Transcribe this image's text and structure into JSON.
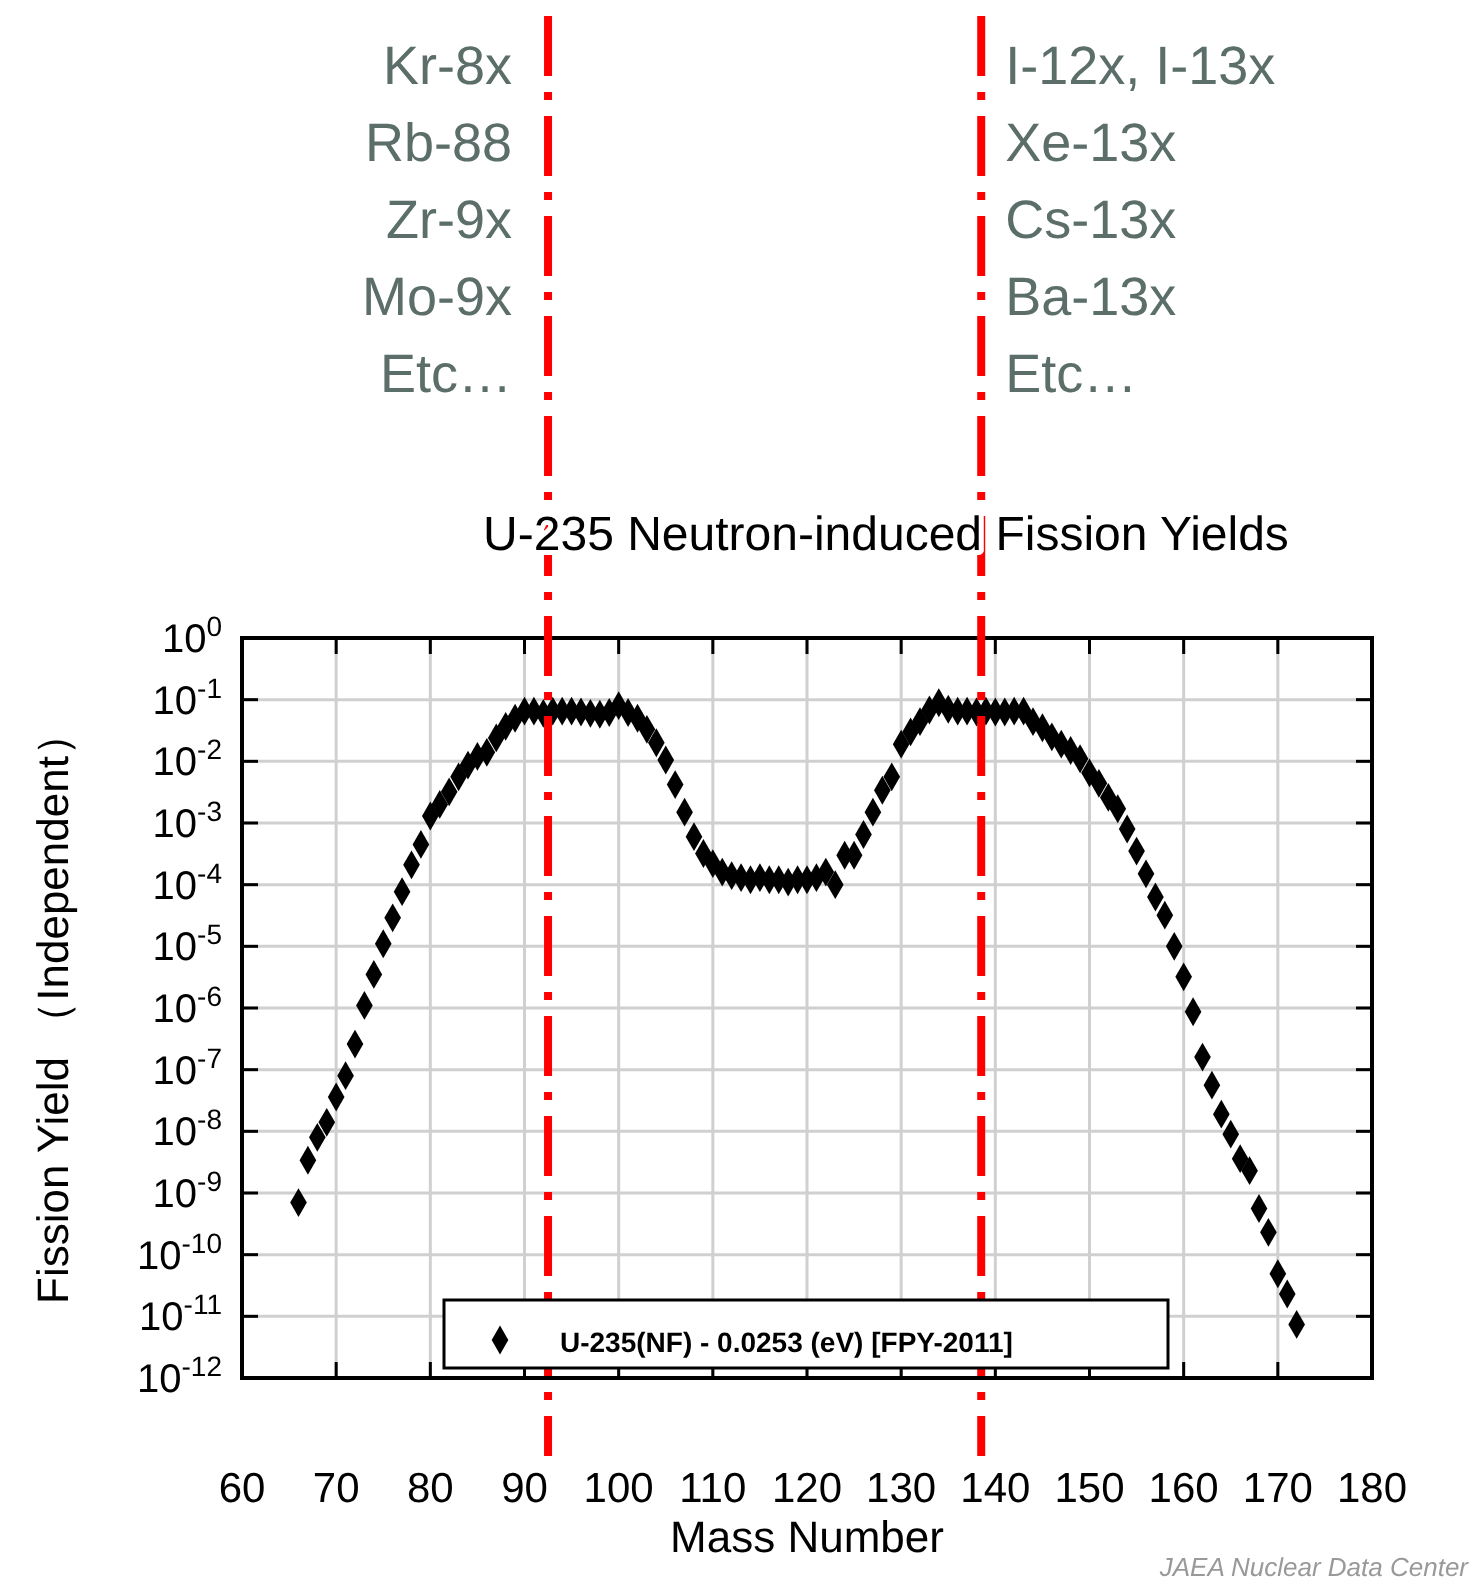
{
  "chart_data": {
    "type": "scatter",
    "title": "U-235  Neutron-induced Fission Yields",
    "xlabel": "Mass Number",
    "ylabel": "Fission Yield （Independent）",
    "log": "y",
    "grid": true,
    "legend": "bottom",
    "marker": "diamond",
    "xlim": [
      60,
      180
    ],
    "xticks": [
      60,
      70,
      80,
      90,
      100,
      110,
      120,
      130,
      140,
      150,
      160,
      170,
      180
    ],
    "ylim": [
      1e-12,
      1
    ],
    "yticks": [
      {
        "value": 1e-12,
        "label": "10$^{-12}$"
      },
      {
        "value": 1e-11,
        "label": "10$^{-11}$"
      },
      {
        "value": 1e-10,
        "label": "10$^{-10}$"
      },
      {
        "value": 1e-09,
        "label": "10$^{-9}$"
      },
      {
        "value": 1e-08,
        "label": "10$^{-8}$"
      },
      {
        "value": 1e-07,
        "label": "10$^{-7}$"
      },
      {
        "value": 1e-06,
        "label": "10$^{-6}$"
      },
      {
        "value": 1e-05,
        "label": "10$^{-5}$"
      },
      {
        "value": 0.0001,
        "label": "10$^{-4}$"
      },
      {
        "value": 0.001,
        "label": "10$^{-3}$"
      },
      {
        "value": 0.01,
        "label": "10$^{-2}$"
      },
      {
        "value": 0.1,
        "label": "10$^{-1}$"
      },
      {
        "value": 1,
        "label": "10$^{0}$"
      }
    ],
    "series": [
      {
        "name": "U-235(NF) - 0.0253 (eV)  [FPY-2011]",
        "color": "#000000",
        "x": [
          66,
          67,
          68,
          69,
          70,
          71,
          72,
          73,
          74,
          75,
          76,
          77,
          78,
          79,
          80,
          81,
          82,
          83,
          84,
          85,
          86,
          87,
          88,
          89,
          90,
          91,
          92,
          93,
          94,
          95,
          96,
          97,
          98,
          99,
          100,
          101,
          102,
          103,
          104,
          105,
          106,
          107,
          108,
          109,
          110,
          111,
          112,
          113,
          114,
          115,
          116,
          117,
          118,
          119,
          120,
          121,
          122,
          123,
          124,
          125,
          126,
          127,
          128,
          129,
          130,
          131,
          132,
          133,
          134,
          135,
          136,
          137,
          138,
          139,
          140,
          141,
          142,
          143,
          144,
          145,
          146,
          147,
          148,
          149,
          150,
          151,
          152,
          153,
          154,
          155,
          156,
          157,
          158,
          159,
          160,
          161,
          162,
          163,
          164,
          165,
          166,
          167,
          168,
          169,
          170,
          171,
          172
        ],
        "values": [
          7e-10,
          3.4e-09,
          8e-09,
          1.4e-08,
          3.6e-08,
          8e-08,
          2.6e-07,
          1.1e-06,
          3.5e-06,
          1.1e-05,
          2.9e-05,
          7.7e-05,
          0.00021,
          0.00045,
          0.0013,
          0.002,
          0.0032,
          0.0056,
          0.0087,
          0.012,
          0.014,
          0.024,
          0.037,
          0.05,
          0.065,
          0.065,
          0.06,
          0.065,
          0.065,
          0.065,
          0.063,
          0.06,
          0.058,
          0.062,
          0.08,
          0.062,
          0.05,
          0.033,
          0.02,
          0.0105,
          0.0042,
          0.0015,
          0.0006,
          0.00032,
          0.00022,
          0.00016,
          0.00014,
          0.00013,
          0.00012,
          0.00013,
          0.00012,
          0.00012,
          0.00011,
          0.00012,
          0.00012,
          0.00013,
          0.00016,
          0.0001,
          0.0003,
          0.0003,
          0.00065,
          0.0015,
          0.0034,
          0.0056,
          0.019,
          0.03,
          0.044,
          0.068,
          0.089,
          0.07,
          0.065,
          0.065,
          0.063,
          0.065,
          0.063,
          0.063,
          0.065,
          0.065,
          0.044,
          0.035,
          0.025,
          0.019,
          0.015,
          0.011,
          0.0065,
          0.0044,
          0.0026,
          0.0017,
          0.0008,
          0.00035,
          0.00015,
          6.3e-05,
          3.2e-05,
          1e-05,
          3.2e-06,
          8.7e-07,
          1.6e-07,
          5.6e-08,
          1.9e-08,
          9e-09,
          3.6e-09,
          2.3e-09,
          5.6e-10,
          2.3e-10,
          4.9e-11,
          2.3e-11,
          7.4e-12
        ]
      }
    ],
    "ref_lines": [
      {
        "axis": "x",
        "value": 92.5,
        "color": "#ff0000",
        "line_style": "dashed"
      },
      {
        "axis": "x",
        "value": 138.5,
        "color": "#ff0000",
        "line_style": "dashed"
      }
    ],
    "annotations": [
      "Kr-8x",
      "Rb-88",
      "Zr-9x",
      "Mo-9x",
      "Etc…",
      "I-12x, I-13x",
      "Xe-13x",
      "Cs-13x",
      "Ba-13x",
      "Etc…",
      "JAEA Nuclear Data Center"
    ]
  }
}
